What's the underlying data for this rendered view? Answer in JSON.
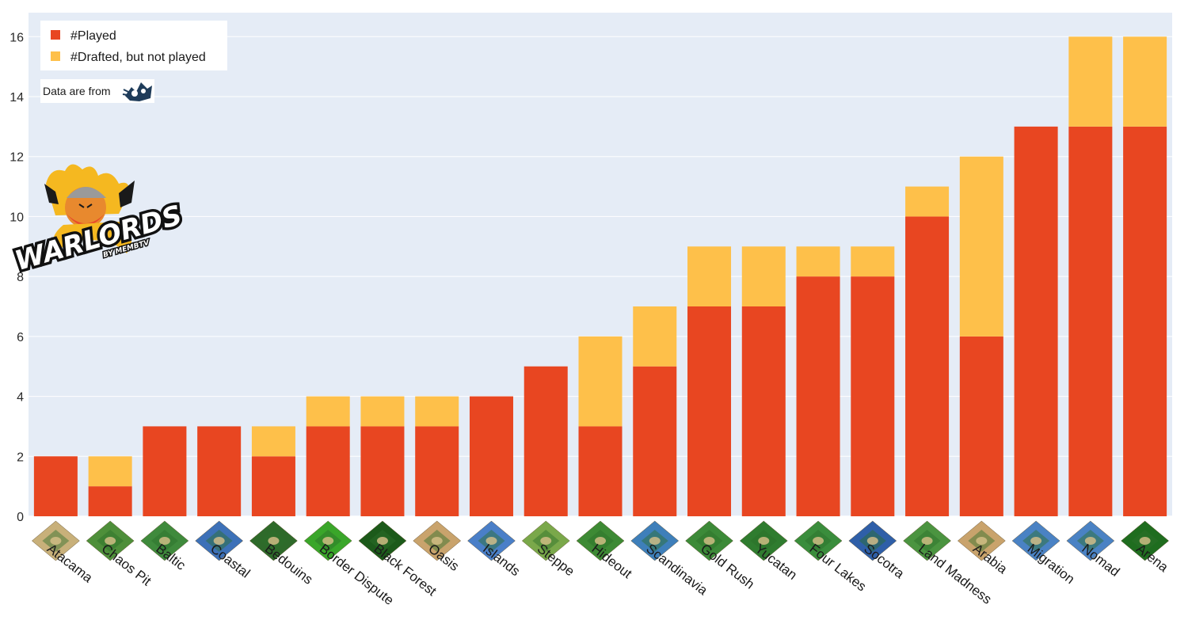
{
  "chart_data": {
    "type": "bar",
    "stacked": true,
    "categories": [
      "Atacama",
      "Chaos Pit",
      "Baltic",
      "Coastal",
      "Bedouins",
      "Border Dispute",
      "Black Forest",
      "Oasis",
      "Islands",
      "Steppe",
      "Hideout",
      "Scandinavia",
      "Gold Rush",
      "Yucatan",
      "Four Lakes",
      "Socotra",
      "Land Madness",
      "Arabia",
      "Migration",
      "Nomad",
      "Arena"
    ],
    "series": [
      {
        "name": "#Played",
        "color": "#e84621",
        "values": [
          2,
          1,
          3,
          3,
          2,
          3,
          3,
          3,
          4,
          5,
          3,
          5,
          7,
          7,
          8,
          8,
          10,
          6,
          13,
          13,
          13
        ]
      },
      {
        "name": "#Drafted, but not played",
        "color": "#fec04a",
        "values": [
          0,
          1,
          0,
          0,
          1,
          1,
          1,
          1,
          0,
          0,
          3,
          2,
          2,
          2,
          1,
          1,
          1,
          6,
          0,
          3,
          3
        ]
      }
    ],
    "y_ticks": [
      "0",
      "2",
      "4",
      "6",
      "8",
      "10",
      "12",
      "14",
      "16"
    ],
    "ylim": [
      0,
      16.8
    ],
    "grid": true,
    "legend_position": "top-left",
    "plot_background": "#e5ecf6",
    "map_icon_colors": [
      "#c8b07a",
      "#4e8f3a",
      "#3f8a3c",
      "#3d71b8",
      "#2e6a2a",
      "#3aa62a",
      "#1c5a1a",
      "#c9a36c",
      "#4a7fc8",
      "#7aa84a",
      "#3d8a34",
      "#3e7fba",
      "#3c8a38",
      "#2f7c2f",
      "#3a8d3c",
      "#2f5fa8",
      "#4b9440",
      "#c9a36c",
      "#4a82c4",
      "#4a82c4",
      "#1f6d1f"
    ]
  },
  "credit": {
    "text": "Data are from",
    "icon": "tournament-logo-icon"
  },
  "logo": {
    "main": "WARLORDS",
    "sub": "BY MEMBTV",
    "icon": "viking-warrior-icon"
  }
}
